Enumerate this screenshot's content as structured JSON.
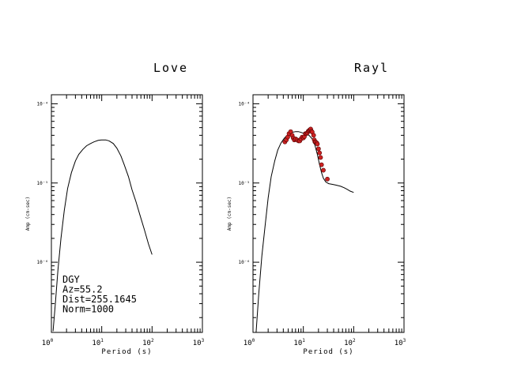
{
  "chart_data": [
    {
      "type": "line",
      "title": "Love",
      "xlabel": "Period (s)",
      "ylabel": "Amp (cm-sec)",
      "xscale": "log",
      "yscale": "log",
      "xlim": [
        1,
        1000
      ],
      "ylim": [
        1.3e-07,
        0.00013
      ],
      "xticks": [
        {
          "base": "10",
          "exp": "0",
          "value": 1
        },
        {
          "base": "10",
          "exp": "1",
          "value": 10
        },
        {
          "base": "10",
          "exp": "2",
          "value": 100
        },
        {
          "base": "10",
          "exp": "3",
          "value": 1000
        }
      ],
      "yticks": [
        {
          "label": "10⁻⁴",
          "value": 0.0001
        },
        {
          "label": "10⁻⁵",
          "value": 1e-05
        },
        {
          "label": "10⁻⁶",
          "value": 1e-06
        }
      ],
      "annotation": [
        "DGY",
        "Az=55.2",
        "Dist=255.1645",
        "Norm=1000"
      ],
      "series": [
        {
          "x": [
            1.08,
            1.2,
            1.35,
            1.55,
            1.8,
            2.1,
            2.5,
            3.0,
            3.5,
            4.2,
            5.0,
            6.0,
            7.0,
            8.5,
            10,
            12,
            14,
            17,
            20,
            24,
            28,
            34,
            40,
            48,
            57,
            70,
            85,
            100
          ],
          "y": [
            1.35e-07,
            3e-07,
            8e-07,
            2e-06,
            4.5e-06,
            8.5e-06,
            1.35e-05,
            1.9e-05,
            2.3e-05,
            2.65e-05,
            2.95e-05,
            3.15e-05,
            3.3e-05,
            3.45e-05,
            3.5e-05,
            3.5e-05,
            3.4e-05,
            3.15e-05,
            2.75e-05,
            2.2e-05,
            1.7e-05,
            1.2e-05,
            8.2e-06,
            5.8e-06,
            4e-06,
            2.6e-06,
            1.7e-06,
            1.25e-06
          ]
        }
      ]
    },
    {
      "type": "line",
      "title": "Rayl",
      "xlabel": "Period (s)",
      "ylabel": "Amp (cm-sec)",
      "xscale": "log",
      "yscale": "log",
      "xlim": [
        1,
        1000
      ],
      "ylim": [
        1.3e-07,
        0.00013
      ],
      "xticks": [
        {
          "base": "10",
          "exp": "0",
          "value": 1
        },
        {
          "base": "10",
          "exp": "1",
          "value": 10
        },
        {
          "base": "10",
          "exp": "2",
          "value": 100
        },
        {
          "base": "10",
          "exp": "3",
          "value": 1000
        }
      ],
      "yticks": [
        {
          "label": "10⁻⁴",
          "value": 0.0001
        },
        {
          "label": "10⁻⁵",
          "value": 1e-05
        },
        {
          "label": "10⁻⁶",
          "value": 1e-06
        }
      ],
      "series": [
        {
          "x": [
            1.15,
            1.3,
            1.5,
            1.75,
            2.0,
            2.3,
            2.7,
            3.1,
            3.6,
            4.2,
            5.0,
            6.0,
            7.0,
            8.0,
            9.0,
            10,
            11.5,
            13,
            15,
            17,
            19,
            21,
            23,
            25,
            28,
            32,
            38,
            45,
            55,
            65,
            75,
            85,
            100
          ],
          "y": [
            1.3e-07,
            4e-07,
            1.2e-06,
            3e-06,
            6.5e-06,
            1.2e-05,
            1.9e-05,
            2.6e-05,
            3.2e-05,
            3.7e-05,
            4.1e-05,
            4.35e-05,
            4.45e-05,
            4.45e-05,
            4.35e-05,
            4.25e-05,
            4.15e-05,
            4e-05,
            3.6e-05,
            3e-05,
            2.3e-05,
            1.7e-05,
            1.35e-05,
            1.15e-05,
            1.03e-05,
            9.8e-06,
            9.6e-06,
            9.4e-06,
            9.1e-06,
            8.7e-06,
            8.3e-06,
            7.9e-06,
            7.6e-06
          ]
        },
        {
          "type": "scatter",
          "x": [
            4.3,
            4.6,
            4.9,
            5.2,
            5.6,
            6.0,
            6.3,
            6.6,
            7.0,
            7.5,
            8.0,
            8.5,
            9.0,
            9.5,
            10,
            10.5,
            11,
            11.5,
            12,
            12.5,
            13,
            13.5,
            14,
            14.5,
            15,
            16,
            16.5,
            17,
            17.5,
            18.5,
            19,
            20,
            21,
            22,
            23,
            25,
            30
          ],
          "y": [
            3.3e-05,
            3.5e-05,
            3.8e-05,
            4.2e-05,
            4.45e-05,
            4e-05,
            3.7e-05,
            3.5e-05,
            3.6e-05,
            3.5e-05,
            3.4e-05,
            3.4e-05,
            3.6e-05,
            3.8e-05,
            3.7e-05,
            3.85e-05,
            4.2e-05,
            4.2e-05,
            4.3e-05,
            4.5e-05,
            4.6e-05,
            4.7e-05,
            4.8e-05,
            4.5e-05,
            4.4e-05,
            4e-05,
            3.5e-05,
            3.3e-05,
            3.3e-05,
            3.2e-05,
            3.1e-05,
            2.7e-05,
            2.4e-05,
            2.1e-05,
            1.7e-05,
            1.45e-05,
            1.12e-05
          ]
        }
      ]
    }
  ]
}
